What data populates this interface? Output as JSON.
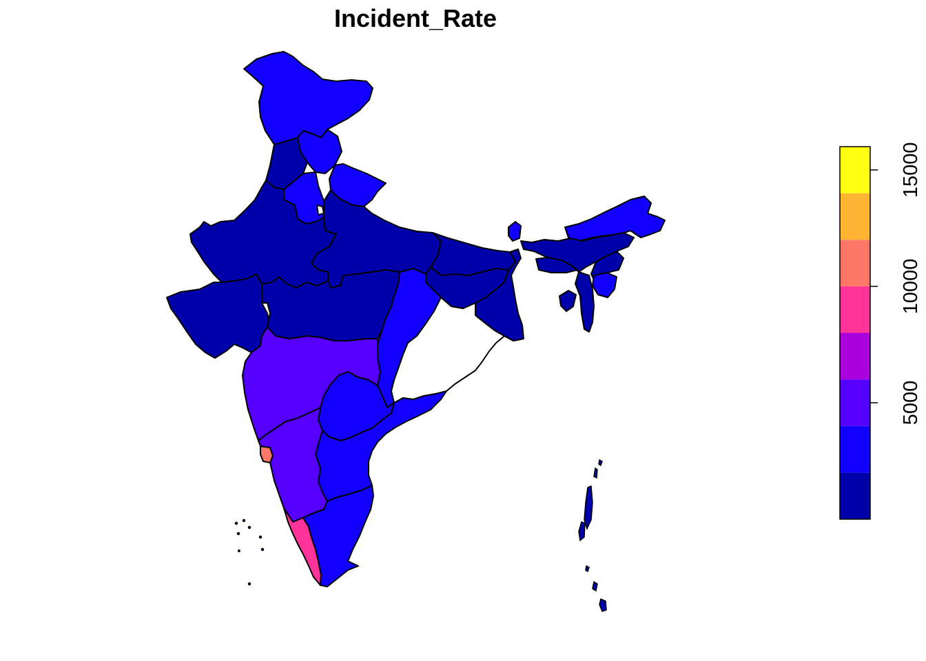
{
  "title": "Incident_Rate",
  "legend": {
    "ticks": [
      {
        "value": 5000,
        "label": "5000"
      },
      {
        "value": 10000,
        "label": "10000"
      },
      {
        "value": 15000,
        "label": "15000"
      }
    ],
    "range": [
      0,
      16000
    ],
    "bins": [
      {
        "from": 0,
        "to": 2000,
        "color": "#0000AA"
      },
      {
        "from": 2000,
        "to": 4000,
        "color": "#1100FF"
      },
      {
        "from": 4000,
        "to": 6000,
        "color": "#5500FF"
      },
      {
        "from": 6000,
        "to": 8000,
        "color": "#AA00DD"
      },
      {
        "from": 8000,
        "to": 10000,
        "color": "#FF3399"
      },
      {
        "from": 10000,
        "to": 12000,
        "color": "#FF7766"
      },
      {
        "from": 12000,
        "to": 14000,
        "color": "#FFB533"
      },
      {
        "from": 14000,
        "to": 16000,
        "color": "#FFFF11"
      }
    ]
  },
  "colors": {
    "very_low": "#0000AA",
    "low": "#1100FF",
    "medium": "#5500FF",
    "high": "#FF3399",
    "higher": "#FF7766",
    "outline": "#000000",
    "background": "#FFFFFF"
  }
}
